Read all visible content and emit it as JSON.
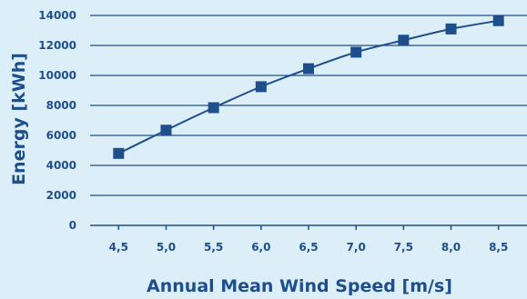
{
  "chart_data": {
    "type": "line",
    "title": "",
    "xlabel": "Annual Mean Wind Speed [m/s]",
    "ylabel": "Energy [kWh]",
    "x": [
      4.5,
      5.0,
      5.5,
      6.0,
      6.5,
      7.0,
      7.5,
      8.0,
      8.5
    ],
    "x_tick_labels": [
      "4,5",
      "5,0",
      "5,5",
      "6,0",
      "6,5",
      "7,0",
      "7,5",
      "8,0",
      "8,5"
    ],
    "y_ticks": [
      0,
      2000,
      4000,
      6000,
      8000,
      10000,
      12000,
      14000
    ],
    "y_tick_labels": [
      "0",
      "2000",
      "4000",
      "6000",
      "8000",
      "10000",
      "12000",
      "14000"
    ],
    "xlim": [
      4.2,
      8.8
    ],
    "ylim": [
      0,
      14000
    ],
    "grid": "horizontal",
    "legend": "none",
    "series": [
      {
        "values": [
          4800,
          6350,
          7850,
          9250,
          10450,
          11550,
          12350,
          13100,
          13650
        ],
        "marker": "square",
        "color": "#1f4e8c"
      }
    ],
    "colors": {
      "background": "#dceef8",
      "gridline": "#1f4e8c",
      "text": "#1f4e8c",
      "series": "#1f4e8c"
    }
  }
}
